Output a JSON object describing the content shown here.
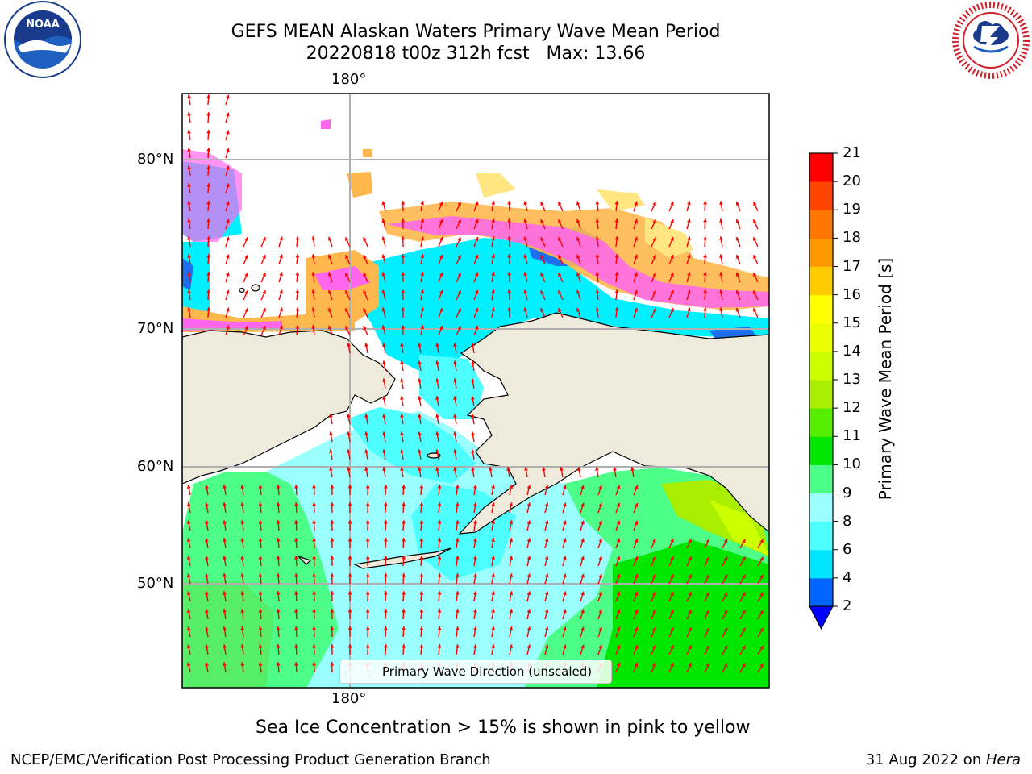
{
  "header": {
    "title_line1": "GEFS MEAN Alaskan Waters Primary Wave Mean Period",
    "title_line2": "20220818 t00z 312h fcst   Max: 13.66"
  },
  "logos": {
    "left": {
      "name": "NOAA",
      "text": "NOAA",
      "ring_text": "NATIONAL OCEANIC AND ATMOSPHERIC ADMINISTRATION · U.S. DEPARTMENT OF COMMERCE"
    },
    "right": {
      "name": "National Weather Service",
      "ring_text": "NATIONAL WEATHER SERVICE"
    }
  },
  "map": {
    "lon_labels": {
      "top": "180°",
      "bottom": "180°"
    },
    "lat_labels": [
      "80°N",
      "70°N",
      "60°N",
      "50°N"
    ],
    "colors": {
      "land": "#efebdc",
      "ice_pink": "#ff66ee",
      "ice_orange": "#ffb84d",
      "ice_yellow": "#ffe680",
      "arrow": "#ff0000",
      "grid": "#b0b0b0"
    },
    "legend_label": "Primary Wave Direction (unscaled)",
    "note": "Sea Ice Concentration > 15% is shown in pink to yellow"
  },
  "colorbar": {
    "label": "Primary Wave Mean Period [s]",
    "ticks": [
      "2",
      "4",
      "6",
      "8",
      "9",
      "10",
      "11",
      "12",
      "13",
      "14",
      "15",
      "16",
      "17",
      "18",
      "19",
      "20",
      "21"
    ],
    "colors": [
      "#0066ff",
      "#00e5ff",
      "#4dffff",
      "#99ffff",
      "#4dff88",
      "#00e600",
      "#55ee00",
      "#aaee00",
      "#ccff00",
      "#eeff00",
      "#ffff00",
      "#ffcc00",
      "#ff9900",
      "#ff7700",
      "#ff4400",
      "#ff0000"
    ],
    "extend_color": "#0000ff"
  },
  "footer": {
    "left": "NCEP/EMC/Verification Post Processing Product Generation Branch",
    "right_date": "31 Aug 2022 on ",
    "right_machine": "Hera"
  }
}
